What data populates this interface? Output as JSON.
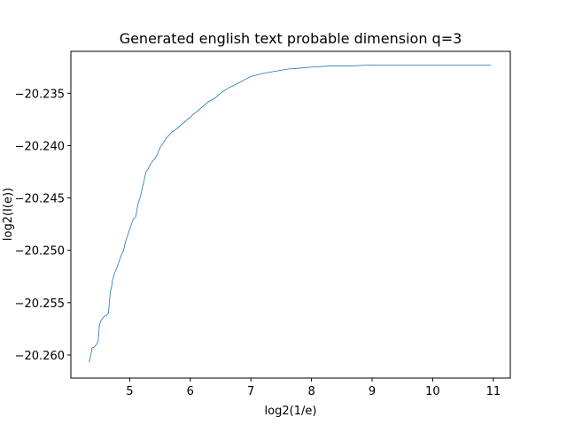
{
  "chart_data": {
    "type": "line",
    "title": "Generated english text probable dimension q=3",
    "xlabel": "log2(1/e)",
    "ylabel": "log2(I(e))",
    "xlim": [
      4.03,
      11.28
    ],
    "ylim": [
      -20.2622,
      -20.231
    ],
    "xticks": [
      5,
      6,
      7,
      8,
      9,
      10,
      11
    ],
    "yticks": [
      -20.26,
      -20.255,
      -20.25,
      -20.245,
      -20.24,
      -20.235
    ],
    "ytick_labels": [
      "−20.260",
      "−20.255",
      "−20.250",
      "−20.245",
      "−20.240",
      "−20.235"
    ],
    "grid": false,
    "line_color": "#1f77b4",
    "series": [
      {
        "x": [
          4.33,
          4.36,
          4.38,
          4.4,
          4.42,
          4.45,
          4.48,
          4.5,
          4.52,
          4.55,
          4.58,
          4.62,
          4.65,
          4.68,
          4.7,
          4.72,
          4.75,
          4.78,
          4.8,
          4.83,
          4.86,
          4.9,
          4.93,
          4.96,
          5.0,
          5.03,
          5.06,
          5.1,
          5.14,
          5.18,
          5.21,
          5.24,
          5.27,
          5.3,
          5.34,
          5.38,
          5.42,
          5.46,
          5.5,
          5.55,
          5.6,
          5.65,
          5.7,
          5.75,
          5.8,
          5.85,
          5.9,
          5.95,
          6.0,
          6.05,
          6.1,
          6.2,
          6.3,
          6.4,
          6.5,
          6.6,
          6.7,
          6.8,
          6.9,
          7.0,
          7.2,
          7.4,
          7.6,
          7.8,
          8.0,
          8.3,
          8.6,
          9.0,
          9.5,
          10.0,
          10.5,
          10.96
        ],
        "y": [
          -20.2607,
          -20.26,
          -20.2593,
          -20.2593,
          -20.2592,
          -20.259,
          -20.2587,
          -20.2572,
          -20.2568,
          -20.2565,
          -20.2563,
          -20.2562,
          -20.256,
          -20.254,
          -20.2535,
          -20.2528,
          -20.2522,
          -20.2518,
          -20.2515,
          -20.251,
          -20.2505,
          -20.25,
          -20.2492,
          -20.2487,
          -20.248,
          -20.2475,
          -20.247,
          -20.2468,
          -20.2455,
          -20.2448,
          -20.244,
          -20.2433,
          -20.2425,
          -20.2423,
          -20.2418,
          -20.2415,
          -20.2412,
          -20.2408,
          -20.2402,
          -20.2398,
          -20.2393,
          -20.239,
          -20.2387,
          -20.2385,
          -20.2383,
          -20.238,
          -20.2378,
          -20.2375,
          -20.2373,
          -20.237,
          -20.2368,
          -20.2363,
          -20.2358,
          -20.2355,
          -20.235,
          -20.2346,
          -20.2343,
          -20.234,
          -20.2337,
          -20.2334,
          -20.2331,
          -20.2329,
          -20.2327,
          -20.2326,
          -20.2325,
          -20.2324,
          -20.2324,
          -20.2323,
          -20.2323,
          -20.2323,
          -20.2323,
          -20.2323
        ]
      }
    ]
  }
}
